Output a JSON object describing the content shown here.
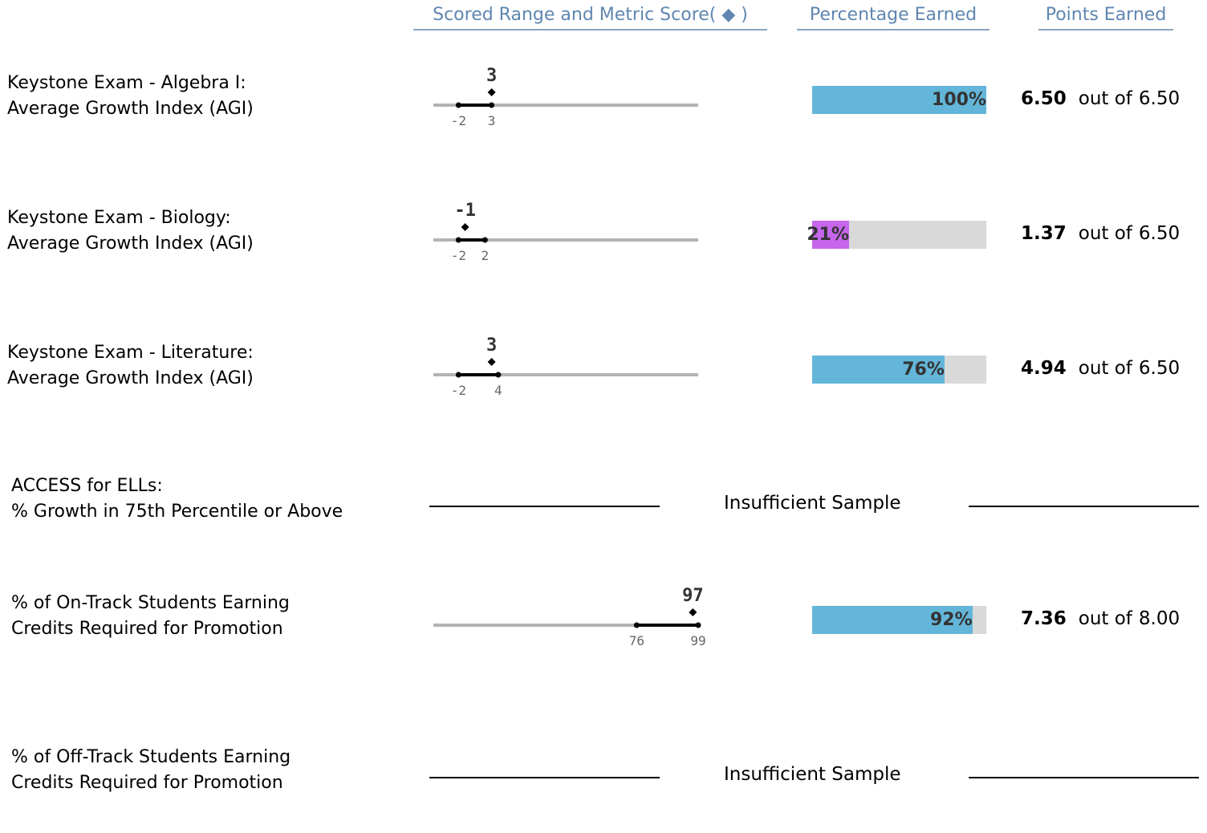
{
  "headers": {
    "scored_range": "Scored Range and Metric Score",
    "scored_range_marker": "( ◆ )",
    "percentage": "Percentage Earned",
    "points": "Points Earned"
  },
  "points_sep": "out of",
  "colors": {
    "header_text": "#5f86b0",
    "bar_blue": "#63b6d9",
    "bar_purple": "#c666ec",
    "bar_track": "#d9d9da",
    "axis_gray": "#b3b3b3"
  },
  "rows": [
    {
      "label1": "Keystone Exam - Algebra I:",
      "label2": "Average Growth Index (AGI)",
      "insufficient": false,
      "range_min": -2,
      "range_max": 3,
      "range_min_label": "-2",
      "range_max_label": "3",
      "score": 3,
      "score_label": "3",
      "percent": 100,
      "percent_label": "100%",
      "bar_color": "blue",
      "points_earned": "6.50",
      "points_possible": "6.50"
    },
    {
      "label1": "Keystone Exam - Biology:",
      "label2": "Average Growth Index (AGI)",
      "insufficient": false,
      "range_min": -2,
      "range_max": 2,
      "range_min_label": "-2",
      "range_max_label": "2",
      "score": -1,
      "score_label": "-1",
      "percent": 21,
      "percent_label": "21%",
      "bar_color": "purple",
      "points_earned": "1.37",
      "points_possible": "6.50"
    },
    {
      "label1": "Keystone Exam - Literature:",
      "label2": "Average Growth Index (AGI)",
      "insufficient": false,
      "range_min": -2,
      "range_max": 4,
      "range_min_label": "-2",
      "range_max_label": "4",
      "score": 3,
      "score_label": "3",
      "percent": 76,
      "percent_label": "76%",
      "bar_color": "blue",
      "points_earned": "4.94",
      "points_possible": "6.50"
    },
    {
      "label1": "ACCESS for ELLs:",
      "label2": "% Growth in 75th Percentile or Above",
      "insufficient": true,
      "insufficient_text": "Insufficient Sample"
    },
    {
      "label1": "% of On-Track Students Earning",
      "label2": "Credits Required for Promotion",
      "insufficient": false,
      "range_min": 76,
      "range_max": 99,
      "range_min_label": "76",
      "range_max_label": "99",
      "score": 97,
      "score_label": "97",
      "percent": 92,
      "percent_label": "92%",
      "bar_color": "blue",
      "points_earned": "7.36",
      "points_possible": "8.00"
    },
    {
      "label1": "% of Off-Track Students Earning",
      "label2": "Credits Required for Promotion",
      "insufficient": true,
      "insufficient_text": "Insufficient Sample"
    }
  ],
  "chart_data": {
    "type": "table",
    "columns": [
      "Scored Range and Metric Score",
      "Percentage Earned",
      "Points Earned"
    ],
    "rows": [
      {
        "metric": "Keystone Exam - Algebra I: Average Growth Index (AGI)",
        "range": [
          -2,
          3
        ],
        "score": 3,
        "percent": 100,
        "points": 6.5,
        "max_points": 6.5
      },
      {
        "metric": "Keystone Exam - Biology: Average Growth Index (AGI)",
        "range": [
          -2,
          2
        ],
        "score": -1,
        "percent": 21,
        "points": 1.37,
        "max_points": 6.5
      },
      {
        "metric": "Keystone Exam - Literature: Average Growth Index (AGI)",
        "range": [
          -2,
          4
        ],
        "score": 3,
        "percent": 76,
        "points": 4.94,
        "max_points": 6.5
      },
      {
        "metric": "ACCESS for ELLs: % Growth in 75th Percentile or Above",
        "status": "Insufficient Sample"
      },
      {
        "metric": "% of On-Track Students Earning Credits Required for Promotion",
        "range": [
          76,
          99
        ],
        "score": 97,
        "percent": 92,
        "points": 7.36,
        "max_points": 8.0
      },
      {
        "metric": "% of Off-Track Students Earning Credits Required for Promotion",
        "status": "Insufficient Sample"
      }
    ]
  }
}
